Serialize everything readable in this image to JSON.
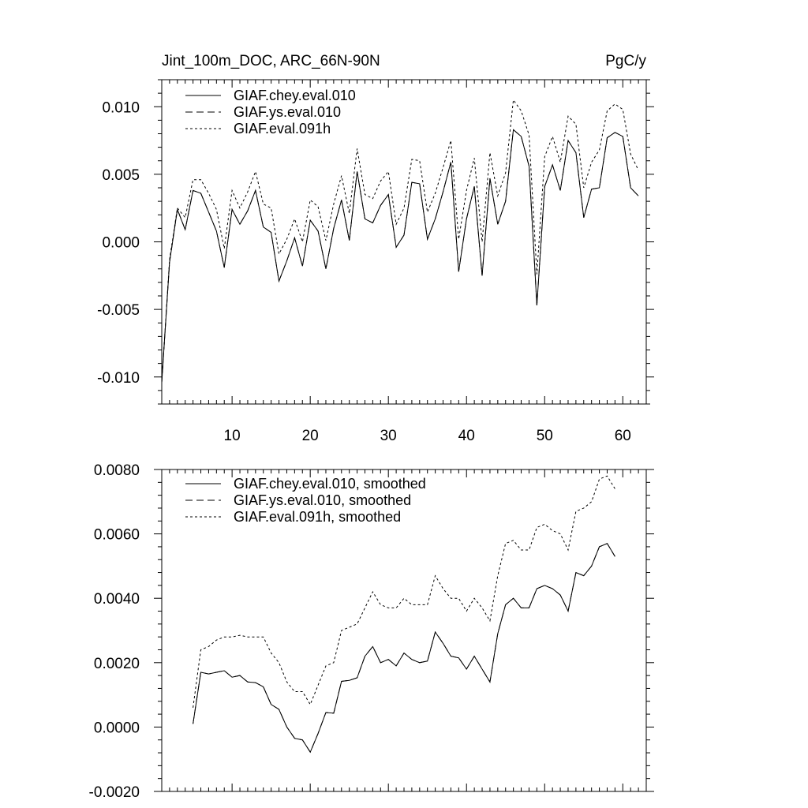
{
  "chart_data": [
    {
      "type": "line",
      "title": "Jint_100m_DOC, ARC_66N-90N",
      "units": "PgC/y",
      "xlim": [
        1,
        63
      ],
      "ylim": [
        -0.012,
        0.012
      ],
      "xticks": [
        10,
        20,
        30,
        40,
        50,
        60
      ],
      "xtick_labels": [
        "10",
        "20",
        "30",
        "40",
        "50",
        "60"
      ],
      "yticks": [
        -0.01,
        -0.005,
        0,
        0.005,
        0.01
      ],
      "ytick_labels": [
        "-0.010",
        "-0.005",
        "0.000",
        "0.005",
        "0.010"
      ],
      "legend": [
        "GIAF.chey.eval.010",
        "GIAF.ys.eval.010",
        "GIAF.eval.091h"
      ],
      "series": [
        {
          "name": "GIAF.chey.eval.010",
          "style": "solid",
          "x": [
            1,
            2,
            3,
            4,
            5,
            6,
            7,
            8,
            9,
            10,
            11,
            12,
            13,
            14,
            15,
            16,
            17,
            18,
            19,
            20,
            21,
            22,
            23,
            24,
            25,
            26,
            27,
            28,
            29,
            30,
            31,
            32,
            33,
            34,
            35,
            36,
            37,
            38,
            39,
            40,
            41,
            42,
            43,
            44,
            45,
            46,
            47,
            48,
            49,
            50,
            51,
            52,
            53,
            54,
            55,
            56,
            57,
            58,
            59,
            60,
            61,
            62
          ],
          "values": [
            -0.0104,
            -0.0015,
            0.0024,
            0.0009,
            0.0038,
            0.0036,
            0.0022,
            0.0008,
            -0.0019,
            0.0024,
            0.0013,
            0.0023,
            0.0038,
            0.0011,
            0.0007,
            -0.0029,
            -0.0014,
            0.0003,
            -0.0018,
            0.0016,
            0.0008,
            -0.002,
            0.001,
            0.0031,
            0.0001,
            0.0052,
            0.0017,
            0.0014,
            0.0027,
            0.0035,
            -0.0004,
            0.0005,
            0.0044,
            0.0043,
            0.0002,
            0.0017,
            0.0037,
            0.0059,
            -0.0022,
            0.0017,
            0.0041,
            -0.0025,
            0.0047,
            0.0013,
            0.003,
            0.0083,
            0.0078,
            0.0056,
            -0.0047,
            0.0041,
            0.0057,
            0.0038,
            0.0075,
            0.0066,
            0.0018,
            0.0039,
            0.004,
            0.0077,
            0.0081,
            0.0078,
            0.004,
            0.0034
          ]
        },
        {
          "name": "GIAF.ys.eval.010",
          "style": "dashed",
          "x": [
            1,
            2,
            3,
            4,
            5,
            6,
            7,
            8,
            9,
            10,
            11,
            12,
            13,
            14,
            15,
            16,
            17,
            18,
            19,
            20,
            21,
            22,
            23,
            24,
            25,
            26,
            27,
            28,
            29,
            30,
            31,
            32,
            33,
            34,
            35,
            36,
            37,
            38,
            39,
            40,
            41,
            42,
            43,
            44,
            45,
            46,
            47,
            48,
            49,
            50,
            51,
            52,
            53,
            54,
            55,
            56,
            57,
            58,
            59,
            60,
            61,
            62
          ],
          "values": [
            -0.0104,
            -0.0015,
            0.0024,
            0.0009,
            0.0038,
            0.0036,
            0.0022,
            0.0008,
            -0.0019,
            0.0024,
            0.0013,
            0.0023,
            0.0038,
            0.0011,
            0.0007,
            -0.0029,
            -0.0014,
            0.0003,
            -0.0018,
            0.0016,
            0.0008,
            -0.002,
            0.001,
            0.0031,
            0.0001,
            0.0052,
            0.0017,
            0.0014,
            0.0027,
            0.0035,
            -0.0004,
            0.0005,
            0.0044,
            0.0043,
            0.0002,
            0.0017,
            0.0037,
            0.0059,
            -0.0022,
            0.0017,
            0.0041,
            -0.0025,
            0.0047,
            0.0013,
            0.003,
            0.0083,
            0.0078,
            0.0056,
            -0.0047,
            0.0041,
            0.0057,
            0.0038,
            0.0075,
            0.0066,
            0.0018,
            0.0039,
            0.004,
            0.0077,
            0.0081,
            0.0078,
            0.004,
            0.0034
          ]
        },
        {
          "name": "GIAF.eval.091h",
          "style": "dotted",
          "x": [
            1,
            2,
            3,
            4,
            5,
            6,
            7,
            8,
            9,
            10,
            11,
            12,
            13,
            14,
            15,
            16,
            17,
            18,
            19,
            20,
            21,
            22,
            23,
            24,
            25,
            26,
            27,
            28,
            29,
            30,
            31,
            32,
            33,
            34,
            35,
            36,
            37,
            38,
            39,
            40,
            41,
            42,
            43,
            44,
            45,
            46,
            47,
            48,
            49,
            50,
            51,
            52,
            53,
            54,
            55,
            56,
            57,
            58,
            59,
            60,
            61,
            62
          ],
          "values": [
            -0.0104,
            -0.0013,
            0.0025,
            0.0018,
            0.0046,
            0.0046,
            0.0036,
            0.0024,
            -0.0005,
            0.0038,
            0.0025,
            0.0037,
            0.0052,
            0.0028,
            0.0025,
            -0.0009,
            0.0002,
            0.0017,
            0.0,
            0.0031,
            0.0026,
            0.0001,
            0.0028,
            0.0049,
            0.0021,
            0.0069,
            0.0035,
            0.0032,
            0.0045,
            0.0052,
            0.0013,
            0.0025,
            0.0061,
            0.006,
            0.0022,
            0.0036,
            0.0055,
            0.0075,
            0.0002,
            0.0038,
            0.0062,
            0.0,
            0.0066,
            0.0034,
            0.0051,
            0.0105,
            0.0097,
            0.0079,
            -0.0024,
            0.0063,
            0.0078,
            0.0059,
            0.0093,
            0.0087,
            0.004,
            0.0059,
            0.0068,
            0.0097,
            0.0102,
            0.0098,
            0.0065,
            0.0053
          ]
        }
      ]
    },
    {
      "type": "line",
      "title": "",
      "xlim": [
        1,
        63
      ],
      "ylim": [
        -0.002,
        0.008
      ],
      "xticks": [
        10,
        20,
        30,
        40,
        50,
        60
      ],
      "yticks": [
        -0.002,
        0.0,
        0.002,
        0.004,
        0.006,
        0.008
      ],
      "ytick_labels": [
        "-0.0020",
        "0.0000",
        "0.0020",
        "0.0040",
        "0.0060",
        "0.0080"
      ],
      "legend": [
        "GIAF.chey.eval.010, smoothed",
        "GIAF.ys.eval.010, smoothed",
        "GIAF.eval.091h, smoothed"
      ],
      "series": [
        {
          "name": "GIAF.chey.eval.010, smoothed",
          "style": "solid",
          "x": [
            5,
            6,
            7,
            8,
            9,
            10,
            11,
            12,
            13,
            14,
            15,
            16,
            17,
            18,
            19,
            20,
            21,
            22,
            23,
            24,
            25,
            26,
            27,
            28,
            29,
            30,
            31,
            32,
            33,
            34,
            35,
            36,
            37,
            38,
            39,
            40,
            41,
            42,
            43,
            44,
            45,
            46,
            47,
            48,
            49,
            50,
            51,
            52,
            53,
            54,
            55,
            56,
            57,
            58,
            59
          ],
          "values": [
            0.0001,
            0.0017,
            0.00165,
            0.0017,
            0.00175,
            0.00155,
            0.0016,
            0.0014,
            0.00138,
            0.00125,
            0.0007,
            0.00055,
            0.0,
            -0.00035,
            -0.0004,
            -0.00078,
            -0.0002,
            0.00045,
            0.00043,
            0.00142,
            0.00145,
            0.00153,
            0.0022,
            0.0025,
            0.002,
            0.0021,
            0.0019,
            0.0023,
            0.0021,
            0.002,
            0.00205,
            0.00295,
            0.0026,
            0.0022,
            0.00215,
            0.0018,
            0.0022,
            0.0018,
            0.0014,
            0.0029,
            0.0038,
            0.004,
            0.0037,
            0.0037,
            0.0043,
            0.0044,
            0.0043,
            0.0041,
            0.0036,
            0.0048,
            0.0047,
            0.005,
            0.0056,
            0.0057,
            0.0053
          ]
        },
        {
          "name": "GIAF.ys.eval.010, smoothed",
          "style": "dashed",
          "x": [
            5,
            6,
            7,
            8,
            9,
            10,
            11,
            12,
            13,
            14,
            15,
            16,
            17,
            18,
            19,
            20,
            21,
            22,
            23,
            24,
            25,
            26,
            27,
            28,
            29,
            30,
            31,
            32,
            33,
            34,
            35,
            36,
            37,
            38,
            39,
            40,
            41,
            42,
            43,
            44,
            45,
            46,
            47,
            48,
            49,
            50,
            51,
            52,
            53,
            54,
            55,
            56,
            57,
            58,
            59
          ],
          "values": [
            0.0001,
            0.0017,
            0.00165,
            0.0017,
            0.00175,
            0.00155,
            0.0016,
            0.0014,
            0.00138,
            0.00125,
            0.0007,
            0.00055,
            0.0,
            -0.00035,
            -0.0004,
            -0.00078,
            -0.0002,
            0.00045,
            0.00043,
            0.00142,
            0.00145,
            0.00153,
            0.0022,
            0.0025,
            0.002,
            0.0021,
            0.0019,
            0.0023,
            0.0021,
            0.002,
            0.00205,
            0.00295,
            0.0026,
            0.0022,
            0.00215,
            0.0018,
            0.0022,
            0.0018,
            0.0014,
            0.0029,
            0.0038,
            0.004,
            0.0037,
            0.0037,
            0.0043,
            0.0044,
            0.0043,
            0.0041,
            0.0036,
            0.0048,
            0.0047,
            0.005,
            0.0056,
            0.0057,
            0.0053
          ]
        },
        {
          "name": "GIAF.eval.091h, smoothed",
          "style": "dotted",
          "x": [
            5,
            6,
            7,
            8,
            9,
            10,
            11,
            12,
            13,
            14,
            15,
            16,
            17,
            18,
            19,
            20,
            21,
            22,
            23,
            24,
            25,
            26,
            27,
            28,
            29,
            30,
            31,
            32,
            33,
            34,
            35,
            36,
            37,
            38,
            39,
            40,
            41,
            42,
            43,
            44,
            45,
            46,
            47,
            48,
            49,
            50,
            51,
            52,
            53,
            54,
            55,
            56,
            57,
            58,
            59
          ],
          "values": [
            0.0006,
            0.0024,
            0.0025,
            0.0027,
            0.0028,
            0.0028,
            0.00285,
            0.0028,
            0.0028,
            0.0028,
            0.0023,
            0.002,
            0.0014,
            0.0011,
            0.0011,
            0.0007,
            0.0013,
            0.0019,
            0.002,
            0.003,
            0.0031,
            0.0032,
            0.0037,
            0.0042,
            0.0038,
            0.0037,
            0.0037,
            0.004,
            0.0038,
            0.0038,
            0.0038,
            0.0047,
            0.0043,
            0.004,
            0.004,
            0.0036,
            0.004,
            0.0037,
            0.0033,
            0.0047,
            0.0057,
            0.0058,
            0.0055,
            0.0055,
            0.0062,
            0.0063,
            0.0061,
            0.006,
            0.0055,
            0.0067,
            0.0068,
            0.007,
            0.0077,
            0.0078,
            0.0074
          ]
        }
      ]
    }
  ]
}
